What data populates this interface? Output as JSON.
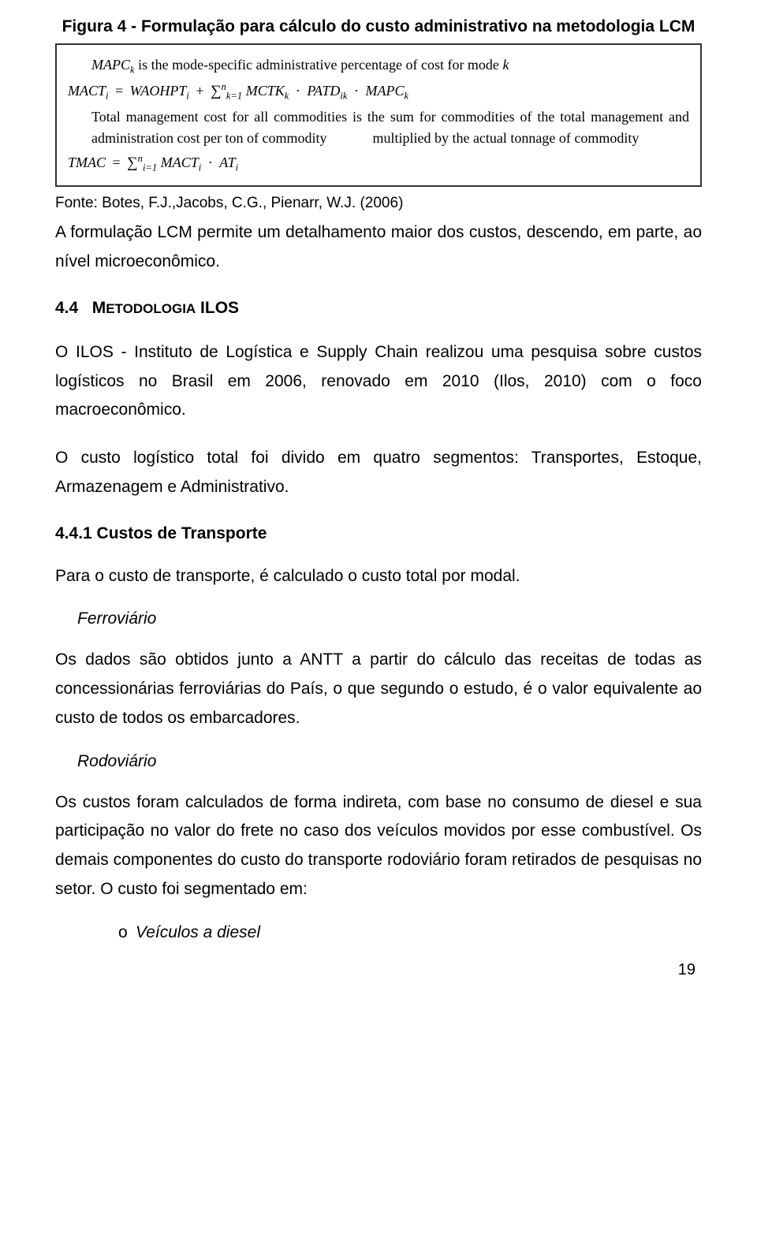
{
  "figure": {
    "title": "Figura 4 - Formulação para cálculo do custo administrativo na metodologia LCM",
    "line1_pre": "MAPC",
    "line1_sub": "k",
    "line1_rest": " is the mode-specific administrative percentage of cost for mode ",
    "line1_end": "k",
    "eq1_lhs": "MACT",
    "eq1_lhs_sub": "i",
    "eq1_eq": " = ",
    "eq1_t1": "WAOHPT",
    "eq1_t1_sub": "i",
    "eq1_plus": " + ",
    "eq1_sum_low": "k=1",
    "eq1_sum_up": "n",
    "eq1_t2": " MCTK",
    "eq1_t2_sub": "k",
    "eq1_dot1": " · ",
    "eq1_t3": "PATD",
    "eq1_t3_sub": "ik",
    "eq1_dot2": " · ",
    "eq1_t4": "MAPC",
    "eq1_t4_sub": "k",
    "desc_a": "Total management cost for all commodities is the sum for commodities of the total management and administration cost per ton of commodity",
    "desc_b": "multiplied by the actual tonnage of commodity",
    "eq2_lhs": "TMAC",
    "eq2_eq": " = ",
    "eq2_sum_low": "i=1",
    "eq2_sum_up": "n",
    "eq2_t1": " MACT",
    "eq2_t1_sub": "i",
    "eq2_dot": " · ",
    "eq2_t2": "AT",
    "eq2_t2_sub": "i"
  },
  "fonte": "Fonte: Botes, F.J.,Jacobs, C.G., Pienarr, W.J. (2006)",
  "p1": "A formulação LCM permite um detalhamento maior dos custos, descendo, em parte, ao nível microeconômico.",
  "h2_num": "4.4",
  "h2_word1": "M",
  "h2_rest1": "ETODOLOGIA",
  "h2_word2": " ILOS",
  "p2": "O ILOS - Instituto de Logística e Supply Chain realizou uma pesquisa sobre custos logísticos no Brasil em 2006, renovado em 2010 (Ilos, 2010) com o foco macroeconômico.",
  "p3": "O custo logístico total foi divido em quatro segmentos: Transportes, Estoque, Armazenagem e Administrativo.",
  "h3": "4.4.1  Custos de Transporte",
  "p4": "Para o custo de transporte, é calculado o custo total por modal.",
  "ital1": "Ferroviário",
  "p5": "Os dados são obtidos junto a ANTT a partir do cálculo das receitas de todas as concessionárias ferroviárias do País, o que segundo o estudo, é o valor equivalente ao custo de todos os embarcadores.",
  "ital2": "Rodoviário",
  "p6": "Os custos foram calculados de forma indireta, com base no consumo de diesel e sua participação no valor do frete no caso dos veículos movidos por esse combustível. Os demais componentes do custo do transporte rodoviário foram retirados de pesquisas no setor.  O custo foi segmentado em:",
  "list1_marker": "o",
  "list1": "Veículos a diesel",
  "page_number": "19"
}
